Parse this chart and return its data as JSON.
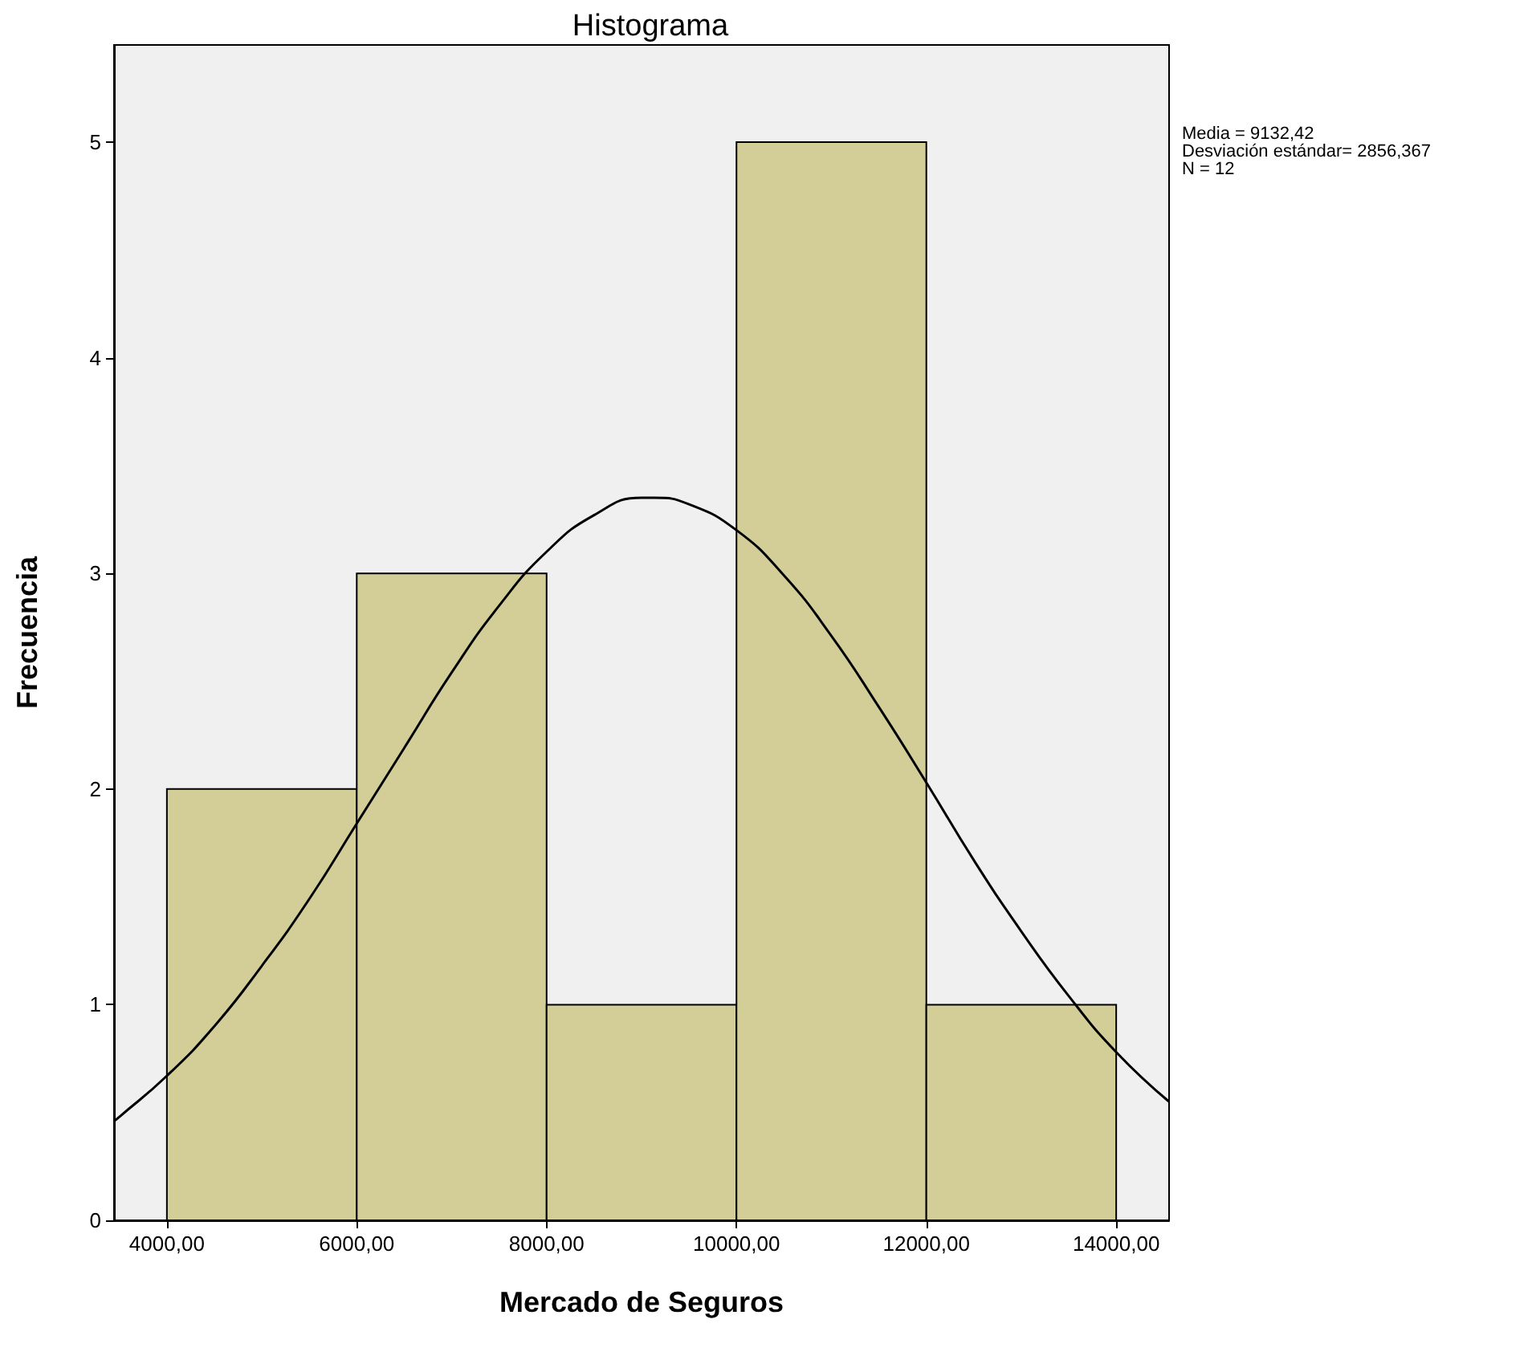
{
  "chart_data": {
    "type": "histogram",
    "title": "Histograma",
    "xlabel": "Mercado de Seguros",
    "ylabel": "Frecuencia",
    "annotations": [
      "Media = 9132,42",
      "Desviación estándar= 2856,367",
      "N = 12"
    ],
    "bins": [
      4000,
      6000,
      8000,
      10000,
      12000,
      14000
    ],
    "values": [
      2,
      3,
      1,
      5,
      1
    ],
    "color": "#d3ce97",
    "series": [
      {
        "type": "line",
        "color": "#000000",
        "x": [
          3443,
          3500,
          4000,
          4500,
          5000,
          5500,
          6000,
          6500,
          7000,
          7500,
          8000,
          8500,
          9000,
          9132,
          9500,
          10000,
          10500,
          11000,
          11500,
          12000,
          12500,
          13000,
          13500,
          14000,
          14557
        ],
        "values": [
          0.46,
          0.48,
          0.67,
          0.9,
          1.18,
          1.49,
          1.84,
          2.19,
          2.54,
          2.85,
          3.1,
          3.27,
          3.35,
          3.35,
          3.32,
          3.2,
          2.99,
          2.71,
          2.38,
          2.03,
          1.67,
          1.34,
          1.04,
          0.78,
          0.55
        ]
      }
    ],
    "xlim": [
      3443,
      14557
    ],
    "xticks": [
      {
        "value": 4000,
        "label": "4000,00"
      },
      {
        "value": 6000,
        "label": "6000,00"
      },
      {
        "value": 8000,
        "label": "8000,00"
      },
      {
        "value": 10000,
        "label": "10000,00"
      },
      {
        "value": 12000,
        "label": "12000,00"
      },
      {
        "value": 14000,
        "label": "14000,00"
      }
    ],
    "ylim": [
      0,
      5.45
    ],
    "yticks": [
      0,
      1,
      2,
      3,
      4,
      5
    ],
    "grid": false,
    "marker": "none"
  }
}
